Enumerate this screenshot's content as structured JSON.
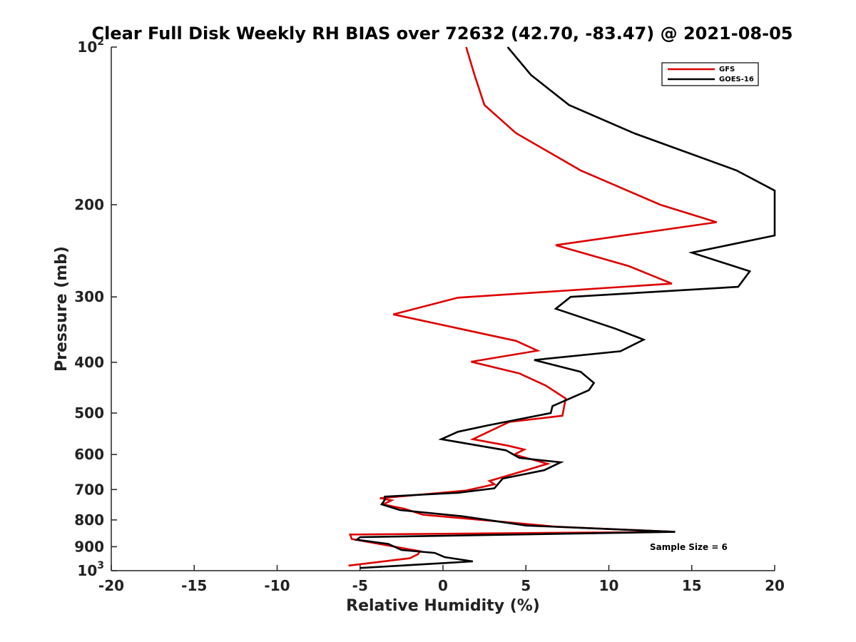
{
  "chart_data": {
    "type": "line",
    "title": "Clear Full Disk Weekly RH BIAS over 72632 (42.70, -83.47) @ 2021-08-05",
    "xlabel": "Relative Humidity (%)",
    "ylabel": "Pressure (mb)",
    "xlim": [
      -20,
      20
    ],
    "ylim": [
      100,
      1000
    ],
    "y_scale": "log",
    "y_reversed": true,
    "x_ticks": [
      -20,
      -15,
      -10,
      -5,
      0,
      5,
      10,
      15,
      20
    ],
    "x_tick_labels": [
      "-20",
      "-15",
      "-10",
      "-5",
      "0",
      "5",
      "10",
      "15",
      "20"
    ],
    "y_ticks": [
      100,
      200,
      300,
      400,
      500,
      600,
      700,
      800,
      900,
      1000
    ],
    "y_tick_labels": [
      {
        "base": "10",
        "exp": "2"
      },
      {
        "base": "200",
        "exp": ""
      },
      {
        "base": "300",
        "exp": ""
      },
      {
        "base": "400",
        "exp": ""
      },
      {
        "base": "500",
        "exp": ""
      },
      {
        "base": "600",
        "exp": ""
      },
      {
        "base": "700",
        "exp": ""
      },
      {
        "base": "800",
        "exp": ""
      },
      {
        "base": "900",
        "exp": ""
      },
      {
        "base": "10",
        "exp": "3"
      }
    ],
    "grid": false,
    "legend_position": "top-right",
    "annotation": "Sample Size = 6",
    "series": [
      {
        "name": "GFS",
        "color": "#dd0000",
        "points": [
          [
            1.4,
            100
          ],
          [
            1.9,
            113
          ],
          [
            2.5,
            129
          ],
          [
            4.4,
            146
          ],
          [
            8.3,
            172
          ],
          [
            13.1,
            200
          ],
          [
            16.5,
            216
          ],
          [
            6.8,
            239
          ],
          [
            11.2,
            262
          ],
          [
            13.8,
            283
          ],
          [
            0.9,
            301
          ],
          [
            -3.0,
            324
          ],
          [
            4.4,
            364
          ],
          [
            5.7,
            380
          ],
          [
            1.7,
            399
          ],
          [
            4.6,
            420
          ],
          [
            6.2,
            443
          ],
          [
            7.4,
            469
          ],
          [
            7.2,
            506
          ],
          [
            4.0,
            520
          ],
          [
            1.8,
            561
          ],
          [
            3.9,
            577
          ],
          [
            4.9,
            587
          ],
          [
            4.3,
            600
          ],
          [
            6.3,
            625
          ],
          [
            5.0,
            643
          ],
          [
            2.8,
            674
          ],
          [
            3.1,
            684
          ],
          [
            1.4,
            703
          ],
          [
            -3.8,
            727
          ],
          [
            -3.1,
            734
          ],
          [
            -3.6,
            747
          ],
          [
            -2.3,
            762
          ],
          [
            -1.2,
            782
          ],
          [
            6.8,
            824
          ],
          [
            14.0,
            843
          ],
          [
            -5.6,
            853
          ],
          [
            -5.5,
            870
          ],
          [
            -1.4,
            918
          ],
          [
            -1.5,
            930
          ],
          [
            -2.0,
            947
          ],
          [
            -5.7,
            978
          ]
        ]
      },
      {
        "name": "GOES-16",
        "color": "#000000",
        "points": [
          [
            3.9,
            100
          ],
          [
            5.3,
            113
          ],
          [
            7.6,
            129
          ],
          [
            11.5,
            146
          ],
          [
            17.7,
            172
          ],
          [
            20.0,
            188
          ],
          [
            20.0,
            229
          ],
          [
            15.0,
            247
          ],
          [
            18.5,
            268
          ],
          [
            17.8,
            287
          ],
          [
            7.7,
            300
          ],
          [
            6.8,
            316
          ],
          [
            10.4,
            345
          ],
          [
            12.1,
            362
          ],
          [
            10.7,
            381
          ],
          [
            5.5,
            396
          ],
          [
            8.3,
            417
          ],
          [
            9.1,
            438
          ],
          [
            8.8,
            452
          ],
          [
            6.6,
            485
          ],
          [
            6.5,
            500
          ],
          [
            2.7,
            528
          ],
          [
            0.9,
            543
          ],
          [
            -0.1,
            561
          ],
          [
            3.8,
            589
          ],
          [
            4.6,
            609
          ],
          [
            7.1,
            621
          ],
          [
            6.1,
            643
          ],
          [
            3.6,
            667
          ],
          [
            3.1,
            696
          ],
          [
            0.9,
            710
          ],
          [
            -3.5,
            722
          ],
          [
            -3.5,
            732
          ],
          [
            -3.7,
            747
          ],
          [
            -2.6,
            766
          ],
          [
            1.1,
            787
          ],
          [
            5.0,
            820
          ],
          [
            14.0,
            843
          ],
          [
            -5.0,
            863
          ],
          [
            -5.2,
            873
          ],
          [
            -3.3,
            889
          ],
          [
            -2.5,
            913
          ],
          [
            -0.5,
            925
          ],
          [
            0.1,
            942
          ],
          [
            1.8,
            960
          ],
          [
            -5.0,
            988
          ]
        ]
      }
    ]
  }
}
